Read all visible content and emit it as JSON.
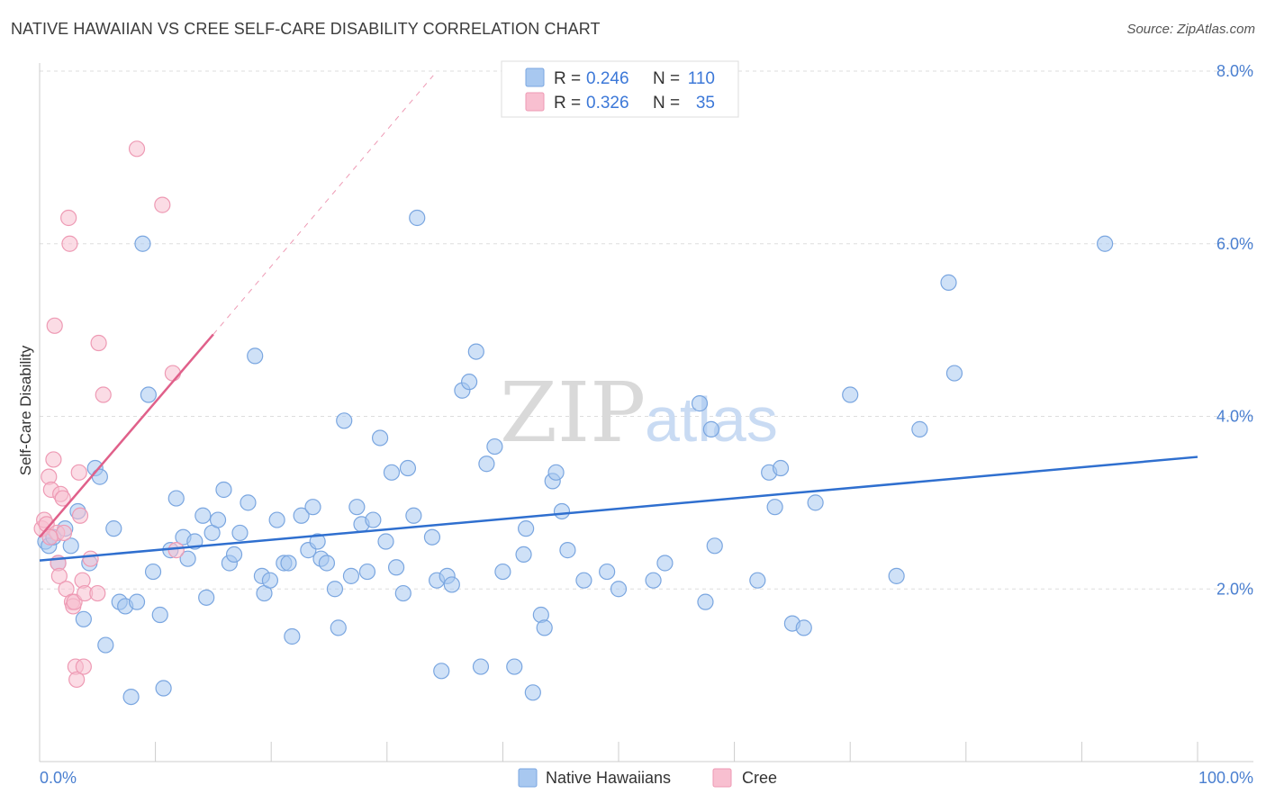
{
  "title": "NATIVE HAWAIIAN VS CREE SELF-CARE DISABILITY CORRELATION CHART",
  "source": "Source: ZipAtlas.com",
  "watermark": {
    "zip": "ZIP",
    "atlas": "atlas"
  },
  "legend_top": [
    {
      "r_label": "R =",
      "r_value": "0.246",
      "n_label": "N =",
      "n_value": "110"
    },
    {
      "r_label": "R =",
      "r_value": "0.326",
      "n_label": "N =",
      "n_value": "35"
    }
  ],
  "legend_bottom": [
    "Native Hawaiians",
    "Cree"
  ],
  "colors": {
    "blue_fill": "#a8c8f0",
    "blue_stroke": "#7aa6e0",
    "blue_line": "#2f6fcf",
    "pink_fill": "#f8bfd0",
    "pink_stroke": "#ee9ab4",
    "pink_line": "#e0608a",
    "tick": "#4a7fd0",
    "grid": "#dddddd"
  },
  "chart_data": {
    "type": "scatter",
    "title": "NATIVE HAWAIIAN VS CREE SELF-CARE DISABILITY CORRELATION CHART",
    "xlabel": "",
    "ylabel": "Self-Care Disability",
    "xlim": [
      0,
      100
    ],
    "ylim": [
      0,
      8
    ],
    "x_tick_labels": [
      "0.0%",
      "100.0%"
    ],
    "y_ticks": [
      2,
      4,
      6,
      8
    ],
    "y_tick_labels": [
      "2.0%",
      "4.0%",
      "6.0%",
      "8.0%"
    ],
    "grid": true,
    "series": [
      {
        "name": "Native Hawaiians",
        "r": 0.246,
        "n": 110,
        "trend": {
          "x": [
            0,
            100
          ],
          "y": [
            2.33,
            3.53
          ]
        },
        "points": [
          [
            0.5,
            2.55
          ],
          [
            0.8,
            2.5
          ],
          [
            1.2,
            2.6
          ],
          [
            1.6,
            2.3
          ],
          [
            2.2,
            2.7
          ],
          [
            2.7,
            2.5
          ],
          [
            3.3,
            2.9
          ],
          [
            3.8,
            1.65
          ],
          [
            4.3,
            2.3
          ],
          [
            4.8,
            3.4
          ],
          [
            5.2,
            3.3
          ],
          [
            5.7,
            1.35
          ],
          [
            6.4,
            2.7
          ],
          [
            6.9,
            1.85
          ],
          [
            7.4,
            1.8
          ],
          [
            7.9,
            0.75
          ],
          [
            8.4,
            1.85
          ],
          [
            8.9,
            6.0
          ],
          [
            9.4,
            4.25
          ],
          [
            9.8,
            2.2
          ],
          [
            10.4,
            1.7
          ],
          [
            10.7,
            0.85
          ],
          [
            11.3,
            2.45
          ],
          [
            11.8,
            3.05
          ],
          [
            12.4,
            2.6
          ],
          [
            12.8,
            2.35
          ],
          [
            13.4,
            2.55
          ],
          [
            14.1,
            2.85
          ],
          [
            14.4,
            1.9
          ],
          [
            14.9,
            2.65
          ],
          [
            15.4,
            2.8
          ],
          [
            15.9,
            3.15
          ],
          [
            16.4,
            2.3
          ],
          [
            16.8,
            2.4
          ],
          [
            17.3,
            2.65
          ],
          [
            18.0,
            3.0
          ],
          [
            18.6,
            4.7
          ],
          [
            19.2,
            2.15
          ],
          [
            19.4,
            1.95
          ],
          [
            19.9,
            2.1
          ],
          [
            20.5,
            2.8
          ],
          [
            21.1,
            2.3
          ],
          [
            21.5,
            2.3
          ],
          [
            21.8,
            1.45
          ],
          [
            22.6,
            2.85
          ],
          [
            23.2,
            2.45
          ],
          [
            23.6,
            2.95
          ],
          [
            24.0,
            2.55
          ],
          [
            24.3,
            2.35
          ],
          [
            24.8,
            2.3
          ],
          [
            25.5,
            2.0
          ],
          [
            25.8,
            1.55
          ],
          [
            26.3,
            3.95
          ],
          [
            26.9,
            2.15
          ],
          [
            27.4,
            2.95
          ],
          [
            27.8,
            2.75
          ],
          [
            28.3,
            2.2
          ],
          [
            28.8,
            2.8
          ],
          [
            29.4,
            3.75
          ],
          [
            29.9,
            2.55
          ],
          [
            30.4,
            3.35
          ],
          [
            30.8,
            2.25
          ],
          [
            31.4,
            1.95
          ],
          [
            31.8,
            3.4
          ],
          [
            32.3,
            2.85
          ],
          [
            32.6,
            6.3
          ],
          [
            33.9,
            2.6
          ],
          [
            34.3,
            2.1
          ],
          [
            34.7,
            1.05
          ],
          [
            35.2,
            2.15
          ],
          [
            35.6,
            2.05
          ],
          [
            36.5,
            4.3
          ],
          [
            37.1,
            4.4
          ],
          [
            37.7,
            4.75
          ],
          [
            38.1,
            1.1
          ],
          [
            38.6,
            3.45
          ],
          [
            39.3,
            3.65
          ],
          [
            40.0,
            2.2
          ],
          [
            41.0,
            1.1
          ],
          [
            41.8,
            2.4
          ],
          [
            42.0,
            2.7
          ],
          [
            42.6,
            0.8
          ],
          [
            43.3,
            1.7
          ],
          [
            43.6,
            1.55
          ],
          [
            44.3,
            3.25
          ],
          [
            44.6,
            3.35
          ],
          [
            45.1,
            2.9
          ],
          [
            45.6,
            2.45
          ],
          [
            47.0,
            2.1
          ],
          [
            49.0,
            2.2
          ],
          [
            50.0,
            2.0
          ],
          [
            53.0,
            2.1
          ],
          [
            54.0,
            2.3
          ],
          [
            57.0,
            4.15
          ],
          [
            57.5,
            1.85
          ],
          [
            58.0,
            3.85
          ],
          [
            58.3,
            2.5
          ],
          [
            62.0,
            2.1
          ],
          [
            63.0,
            3.35
          ],
          [
            63.5,
            2.95
          ],
          [
            64.0,
            3.4
          ],
          [
            65.0,
            1.6
          ],
          [
            66.0,
            1.55
          ],
          [
            67.0,
            3.0
          ],
          [
            70.0,
            4.25
          ],
          [
            74.0,
            2.15
          ],
          [
            76.0,
            3.85
          ],
          [
            78.5,
            5.55
          ],
          [
            79.0,
            4.5
          ],
          [
            92.0,
            6.0
          ]
        ]
      },
      {
        "name": "Cree",
        "r": 0.326,
        "n": 35,
        "trend": {
          "x": [
            0,
            15
          ],
          "y": [
            2.6,
            4.95
          ]
        },
        "trend_extended": {
          "x": [
            15,
            34
          ],
          "y": [
            4.95,
            7.95
          ]
        },
        "points": [
          [
            0.2,
            2.7
          ],
          [
            0.4,
            2.8
          ],
          [
            0.6,
            2.75
          ],
          [
            0.8,
            3.3
          ],
          [
            1.0,
            3.15
          ],
          [
            1.2,
            3.5
          ],
          [
            1.3,
            5.05
          ],
          [
            1.5,
            2.65
          ],
          [
            1.6,
            2.3
          ],
          [
            1.7,
            2.15
          ],
          [
            1.8,
            3.1
          ],
          [
            2.0,
            3.05
          ],
          [
            2.1,
            2.65
          ],
          [
            2.3,
            2.0
          ],
          [
            2.5,
            6.3
          ],
          [
            2.6,
            6.0
          ],
          [
            2.8,
            1.85
          ],
          [
            2.9,
            1.8
          ],
          [
            3.0,
            1.85
          ],
          [
            3.1,
            1.1
          ],
          [
            3.2,
            0.95
          ],
          [
            3.4,
            3.35
          ],
          [
            3.5,
            2.85
          ],
          [
            3.7,
            2.1
          ],
          [
            3.8,
            1.1
          ],
          [
            3.9,
            1.95
          ],
          [
            4.4,
            2.35
          ],
          [
            5.0,
            1.95
          ],
          [
            5.1,
            4.85
          ],
          [
            5.5,
            4.25
          ],
          [
            8.4,
            7.1
          ],
          [
            10.6,
            6.45
          ],
          [
            11.5,
            4.5
          ],
          [
            11.8,
            2.45
          ],
          [
            0.9,
            2.6
          ]
        ]
      }
    ]
  }
}
